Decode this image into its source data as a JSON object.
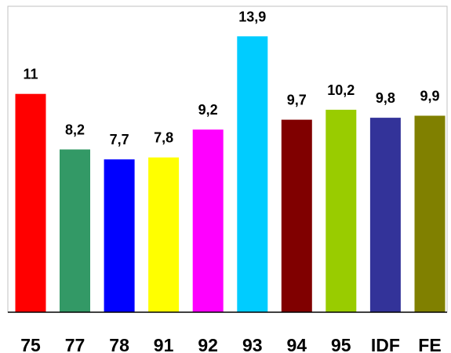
{
  "chart_data": {
    "type": "bar",
    "title": "",
    "xlabel": "",
    "ylabel": "",
    "ylim": [
      0,
      15
    ],
    "grid": false,
    "legend": "none",
    "categories": [
      "75",
      "77",
      "78",
      "91",
      "92",
      "93",
      "94",
      "95",
      "IDF",
      "FE"
    ],
    "values": [
      11,
      8.2,
      7.7,
      7.8,
      9.2,
      13.9,
      9.7,
      10.2,
      9.8,
      9.9
    ],
    "value_labels": [
      "11",
      "8,2",
      "7,7",
      "7,8",
      "9,2",
      "13,9",
      "9,7",
      "10,2",
      "9,8",
      "9,9"
    ],
    "colors": [
      "#ff0000",
      "#339966",
      "#0000ff",
      "#ffff00",
      "#ff00ff",
      "#00ccff",
      "#800000",
      "#99cc00",
      "#333399",
      "#808000"
    ],
    "frame_color": "#c0c0c0",
    "axis_color": "#000000"
  }
}
